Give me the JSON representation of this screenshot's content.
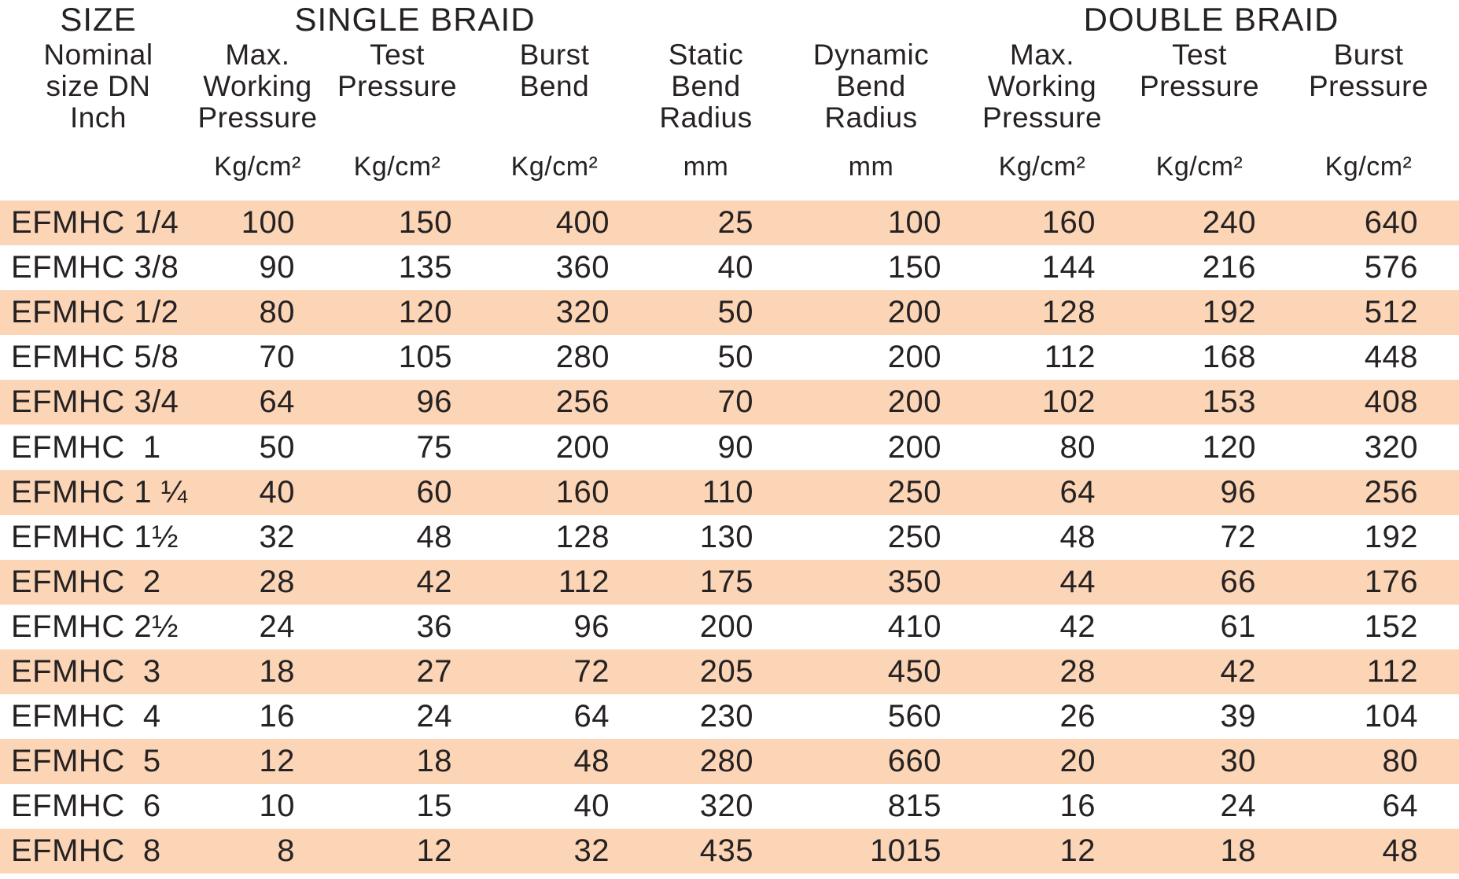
{
  "title": "EFMHC hose pressure specification table",
  "group_headers": {
    "size": "SIZE",
    "single_braid": "SINGLE BRAID",
    "double_braid": "DOUBLE BRAID"
  },
  "columns": [
    {
      "id": "nominal-size",
      "lines": [
        "Nominal",
        "size DN",
        "Inch",
        ""
      ]
    },
    {
      "id": "single-max-working-pressure",
      "lines": [
        "Max.",
        "Working",
        "Pressure",
        "Kg/cm²"
      ]
    },
    {
      "id": "single-test-pressure",
      "lines": [
        "Test",
        "Pressure",
        "",
        "Kg/cm²"
      ]
    },
    {
      "id": "single-burst-bend",
      "lines": [
        "Burst",
        "Bend",
        "",
        "Kg/cm²"
      ]
    },
    {
      "id": "static-bend-radius",
      "lines": [
        "Static",
        "Bend",
        "Radius",
        "mm"
      ]
    },
    {
      "id": "dynamic-bend-radius",
      "lines": [
        "Dynamic",
        "Bend",
        "Radius",
        "mm"
      ]
    },
    {
      "id": "double-max-working-pressure",
      "lines": [
        "Max.",
        "Working",
        "Pressure",
        "Kg/cm²"
      ]
    },
    {
      "id": "double-test-pressure",
      "lines": [
        "Test",
        "Pressure",
        "",
        "Kg/cm²"
      ]
    },
    {
      "id": "double-burst-pressure",
      "lines": [
        "Burst",
        "Pressure",
        "",
        "Kg/cm²"
      ]
    }
  ],
  "rows": [
    {
      "cells": [
        "EFMHC 1/4",
        "100",
        "150",
        "400",
        "25",
        "100",
        "160",
        "240",
        "640"
      ]
    },
    {
      "cells": [
        "EFMHC 3/8",
        "90",
        "135",
        "360",
        "40",
        "150",
        "144",
        "216",
        "576"
      ]
    },
    {
      "cells": [
        "EFMHC 1/2",
        "80",
        "120",
        "320",
        "50",
        "200",
        "128",
        "192",
        "512"
      ]
    },
    {
      "cells": [
        "EFMHC 5/8",
        "70",
        "105",
        "280",
        "50",
        "200",
        "112",
        "168",
        "448"
      ]
    },
    {
      "cells": [
        "EFMHC 3/4",
        "64",
        "96",
        "256",
        "70",
        "200",
        "102",
        "153",
        "408"
      ]
    },
    {
      "cells": [
        "EFMHC  1",
        "50",
        "75",
        "200",
        "90",
        "200",
        "80",
        "120",
        "320"
      ]
    },
    {
      "cells": [
        "EFMHC 1 ¼",
        "40",
        "60",
        "160",
        "110",
        "250",
        "64",
        "96",
        "256"
      ]
    },
    {
      "cells": [
        "EFMHC 1½",
        "32",
        "48",
        "128",
        "130",
        "250",
        "48",
        "72",
        "192"
      ]
    },
    {
      "cells": [
        "EFMHC  2",
        "28",
        "42",
        "112",
        "175",
        "350",
        "44",
        "66",
        "176"
      ]
    },
    {
      "cells": [
        "EFMHC 2½",
        "24",
        "36",
        "96",
        "200",
        "410",
        "42",
        "61",
        "152"
      ]
    },
    {
      "cells": [
        "EFMHC  3",
        "18",
        "27",
        "72",
        "205",
        "450",
        "28",
        "42",
        "112"
      ]
    },
    {
      "cells": [
        "EFMHC  4",
        "16",
        "24",
        "64",
        "230",
        "560",
        "26",
        "39",
        "104"
      ]
    },
    {
      "cells": [
        "EFMHC  5",
        "12",
        "18",
        "48",
        "280",
        "660",
        "20",
        "30",
        "80"
      ]
    },
    {
      "cells": [
        "EFMHC  6",
        "10",
        "15",
        "40",
        "320",
        "815",
        "16",
        "24",
        "64"
      ]
    },
    {
      "cells": [
        "EFMHC  8",
        "8",
        "12",
        "32",
        "435",
        "1015",
        "12",
        "18",
        "48"
      ]
    }
  ],
  "colors": {
    "stripe": "#fbd5b5",
    "text": "#262224",
    "background": "#ffffff"
  }
}
